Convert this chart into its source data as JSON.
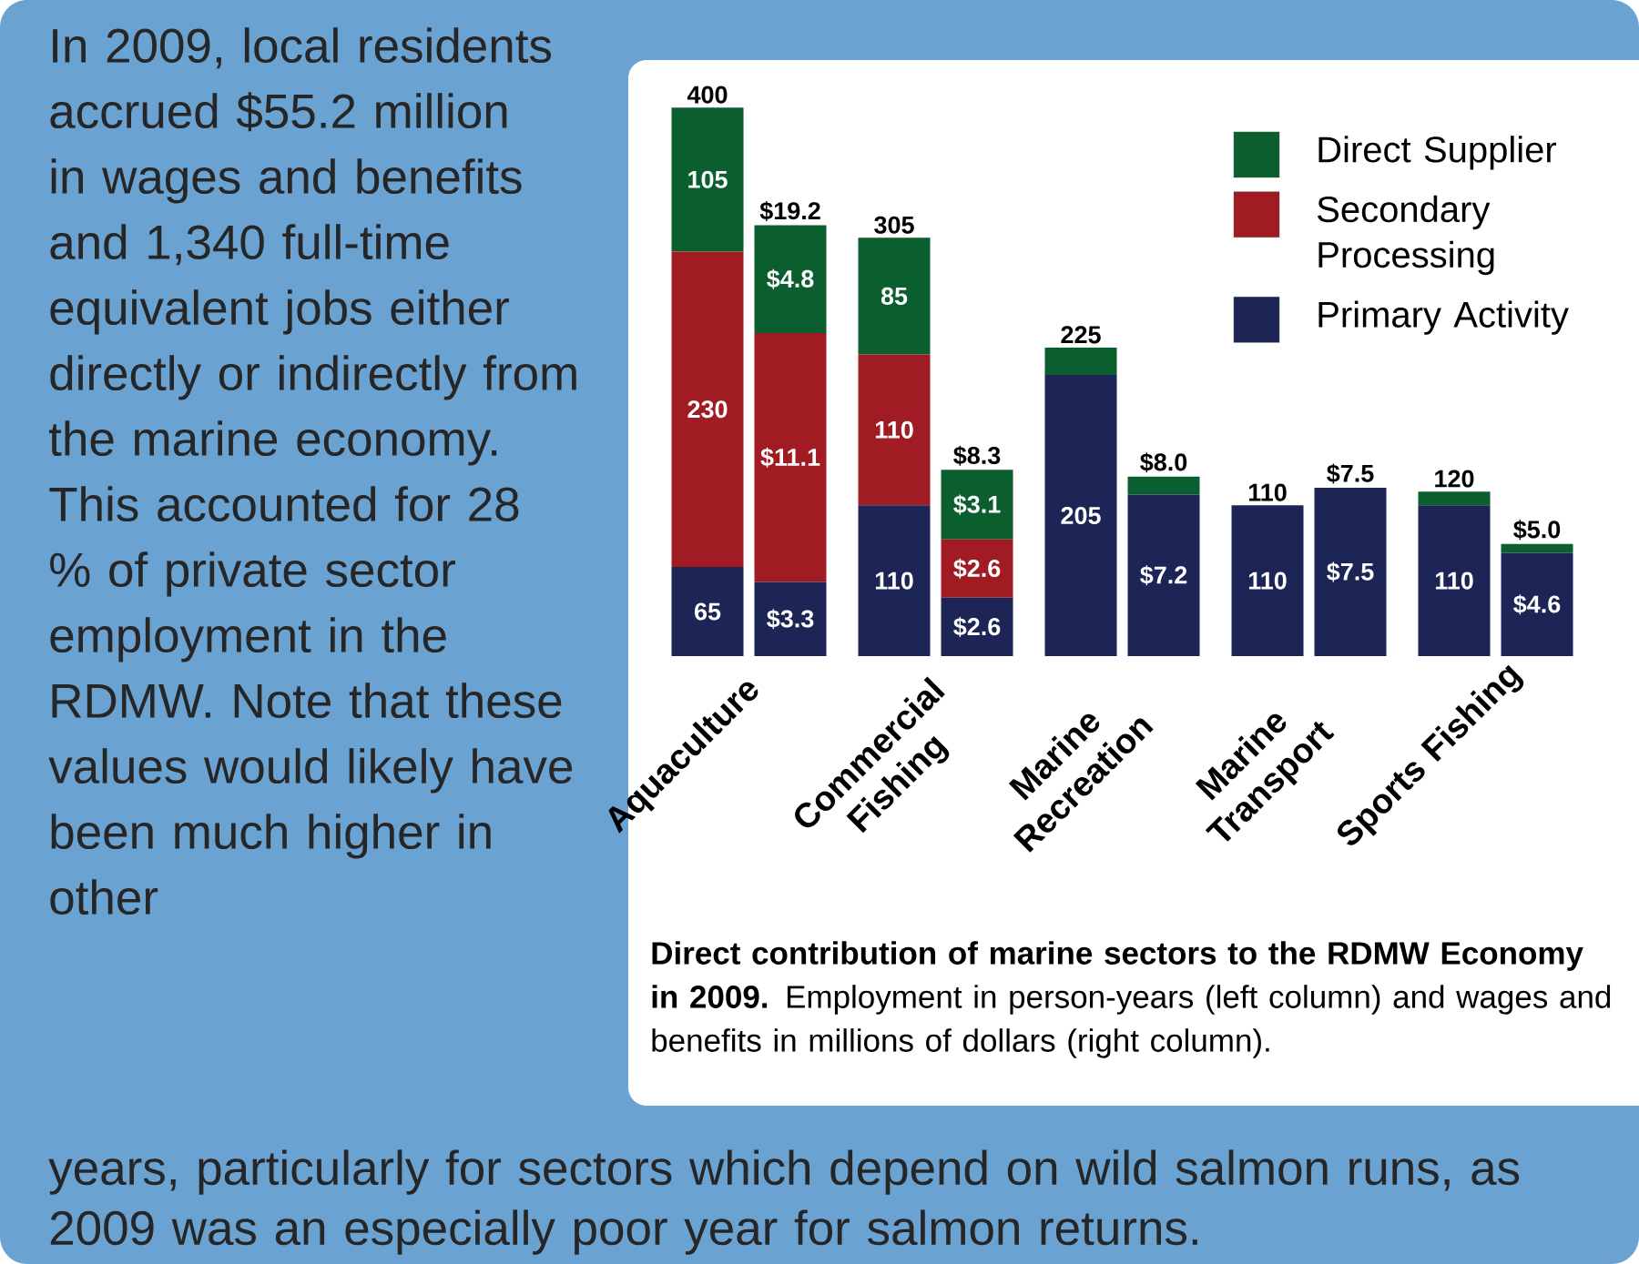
{
  "chart_data": {
    "type": "bar",
    "stacked": true,
    "categories": [
      "Aquaculture",
      "Commercial Fishing",
      "Marine Recreation",
      "Marine Transport",
      "Sports Fishing"
    ],
    "series": [
      {
        "name": "Primary Activity",
        "color": "#1c2556",
        "values": [
          65,
          110,
          205,
          110,
          110
        ],
        "value_labels": [
          "65",
          "110",
          "205",
          "110",
          "110"
        ]
      },
      {
        "name": "Secondary Processing",
        "color": "#a01c22",
        "values": [
          230,
          110,
          0,
          0,
          0
        ],
        "value_labels": [
          "230",
          "110",
          null,
          null,
          null
        ]
      },
      {
        "name": "Direct Supplier",
        "color": "#0b5e2e",
        "values": [
          105,
          85,
          20,
          0,
          10
        ],
        "value_labels": [
          "105",
          "85",
          null,
          null,
          null
        ]
      },
      {
        "color": "#1c2556",
        "axis": "y2",
        "values": [
          3.3,
          2.6,
          7.2,
          7.5,
          4.6
        ],
        "value_labels": [
          "$3.3",
          "$2.6",
          "$7.2",
          "$7.5",
          "$4.6"
        ]
      },
      {
        "color": "#a01c22",
        "axis": "y2",
        "values": [
          11.1,
          2.6,
          0,
          0,
          0
        ],
        "value_labels": [
          "$11.1",
          "$2.6",
          null,
          null,
          null
        ]
      },
      {
        "color": "#0b5e2e",
        "axis": "y2",
        "values": [
          4.8,
          3.1,
          0.8,
          0,
          0.4
        ],
        "value_labels": [
          "$4.8",
          "$3.1",
          null,
          null,
          null
        ]
      }
    ],
    "totals": [
      [
        "400",
        "305",
        "225",
        "110",
        "120"
      ],
      [
        "$19.2",
        "$8.3",
        "$8.0",
        "$7.5",
        "$5.0"
      ]
    ],
    "ylim": [
      0,
      432
    ],
    "y2lim": [
      0,
      26.4
    ],
    "tick_labels": "x",
    "legend": "top right",
    "annotations": [
      "In 2009, local residents accrued $55.2 million in wages and benefits and 1,340 full-time equivalent jobs either directly or indirectly from the marine economy. This accounted for 28 % of private sector employment in the RDMW. Note that these values would likely have been much higher in other",
      "years, particularly for sectors which depend on wild salmon runs, as 2009 was an especially poor year for salmon returns.",
      "**Direct contribution of marine sectors to the RDMW Economy in 2009.** Employment in person-years (left column) and wages and benefits in millions of dollars (right column)."
    ]
  }
}
